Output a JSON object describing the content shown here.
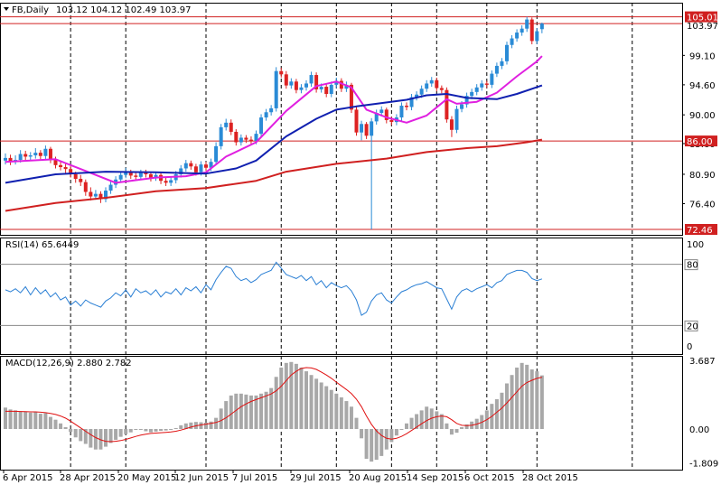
{
  "header": {
    "symbol": "FB,Daily",
    "ohlc": "103.12 104.12 102.49 103.97"
  },
  "colors": {
    "background": "#ffffff",
    "bull_candle": "#2a8bd6",
    "bear_candle": "#dd2222",
    "sma_fast": "#e020e0",
    "sma_mid": "#1020b0",
    "sma_slow": "#d02020",
    "hline": "#d02020",
    "rsi": "#2a7fd4",
    "macd_hist": "#a8a8a8",
    "macd_signal": "#e01010",
    "grid": "#000000"
  },
  "chart_data": [
    {
      "type": "candlestick",
      "panel": "price",
      "title": "FB,Daily",
      "ylim": [
        72.46,
        106.2
      ],
      "y_ticks": [
        "99.10",
        "94.60",
        "90.00",
        "85.60",
        "80.90",
        "76.40"
      ],
      "x_ticks": [
        "6 Apr 2015",
        "28 Apr 2015",
        "20 May 2015",
        "12 Jun 2015",
        "7 Jul 2015",
        "29 Jul 2015",
        "20 Aug 2015",
        "14 Sep 2015",
        "6 Oct 2015",
        "28 Oct 2015"
      ],
      "horizontal_levels": [
        {
          "value": 105.01,
          "label": "105.01",
          "style": "tag"
        },
        {
          "value": 103.97,
          "label": "103.97",
          "style": "plain"
        },
        {
          "value": 86.0,
          "label": "86.00",
          "style": "tag"
        },
        {
          "value": 72.46,
          "label": "72.46",
          "style": "tag"
        }
      ],
      "series": [
        {
          "kind": "ohlc",
          "close": [
            83.4,
            82.9,
            83.1,
            84.0,
            83.6,
            83.8,
            84.2,
            83.7,
            84.8,
            83.1,
            82.3,
            82.0,
            81.7,
            80.9,
            80.2,
            79.7,
            78.2,
            77.5,
            77.9,
            77.1,
            78.4,
            79.3,
            80.1,
            80.8,
            81.3,
            80.7,
            80.5,
            81.1,
            80.9,
            80.4,
            80.8,
            79.9,
            79.6,
            80.0,
            80.9,
            81.8,
            82.6,
            82.1,
            81.2,
            82.4,
            81.9,
            82.8,
            85.2,
            88.1,
            88.8,
            87.4,
            85.8,
            86.5,
            86.2,
            86.0,
            87.1,
            89.6,
            90.4,
            91.0,
            96.7,
            96.2,
            94.5,
            95.1,
            93.8,
            94.2,
            94.8,
            96.1,
            93.9,
            94.3,
            93.2,
            94.6,
            95.2,
            94.0,
            94.6,
            90.8,
            87.3,
            88.6,
            86.8,
            89.0,
            90.3,
            90.8,
            89.2,
            88.9,
            89.6,
            91.4,
            91.2,
            92.7,
            93.1,
            94.0,
            94.8,
            95.3,
            94.1,
            93.8,
            89.3,
            87.7,
            90.9,
            91.6,
            92.9,
            93.5,
            94.2,
            94.8,
            94.6,
            96.3,
            97.5,
            98.2,
            100.7,
            101.7,
            102.6,
            103.2,
            104.6,
            101.3,
            102.8,
            103.97
          ],
          "open": [
            83.0,
            83.4,
            82.9,
            83.1,
            84.0,
            83.6,
            83.8,
            84.2,
            83.7,
            84.8,
            83.1,
            82.3,
            82.0,
            81.7,
            80.9,
            80.2,
            79.7,
            78.2,
            77.5,
            77.9,
            77.1,
            78.4,
            79.3,
            80.1,
            80.8,
            81.3,
            80.7,
            80.5,
            81.1,
            80.9,
            80.4,
            80.8,
            79.9,
            79.6,
            80.0,
            80.9,
            81.8,
            82.6,
            82.1,
            81.2,
            82.4,
            81.9,
            82.8,
            85.2,
            88.1,
            88.8,
            87.4,
            85.8,
            86.5,
            86.2,
            86.0,
            87.1,
            89.6,
            90.4,
            91.0,
            96.7,
            96.2,
            94.5,
            95.1,
            93.8,
            94.2,
            94.8,
            96.1,
            93.9,
            94.3,
            93.2,
            94.6,
            95.2,
            94.0,
            94.6,
            90.8,
            87.3,
            88.6,
            86.8,
            89.0,
            90.3,
            90.8,
            89.2,
            88.9,
            89.6,
            91.4,
            91.2,
            92.7,
            93.1,
            94.0,
            94.8,
            95.3,
            94.1,
            93.8,
            89.3,
            87.7,
            90.9,
            91.6,
            92.9,
            93.5,
            94.2,
            94.8,
            94.6,
            96.3,
            97.5,
            98.2,
            100.7,
            101.7,
            102.6,
            103.2,
            104.6,
            101.3,
            103.12
          ],
          "high": [
            84.1,
            83.9,
            83.8,
            84.6,
            84.5,
            84.3,
            84.9,
            84.6,
            85.3,
            85.1,
            83.6,
            82.9,
            82.5,
            82.2,
            81.3,
            80.8,
            80.1,
            78.9,
            78.5,
            78.3,
            78.9,
            79.8,
            80.6,
            81.3,
            81.9,
            81.6,
            81.2,
            81.6,
            81.6,
            81.3,
            81.3,
            81.1,
            80.4,
            80.5,
            81.4,
            82.3,
            83.1,
            83.0,
            82.5,
            82.9,
            82.8,
            83.3,
            85.8,
            88.6,
            89.4,
            89.3,
            87.8,
            87.0,
            86.9,
            86.7,
            87.6,
            90.1,
            90.9,
            91.5,
            97.3,
            97.2,
            96.7,
            95.6,
            95.5,
            94.7,
            95.3,
            96.6,
            96.5,
            94.8,
            94.8,
            95.1,
            95.7,
            95.6,
            95.1,
            94.9,
            91.3,
            89.1,
            88.9,
            89.5,
            90.8,
            91.3,
            91.1,
            89.7,
            90.1,
            91.9,
            91.9,
            93.2,
            93.6,
            94.5,
            95.3,
            95.8,
            95.7,
            94.5,
            94.2,
            89.8,
            91.4,
            92.1,
            93.4,
            94.0,
            94.7,
            95.3,
            95.2,
            96.8,
            98.0,
            98.7,
            101.2,
            102.2,
            103.1,
            103.7,
            105.01,
            104.9,
            103.3,
            104.12
          ],
          "low": [
            82.4,
            82.3,
            82.4,
            82.7,
            83.0,
            83.1,
            83.3,
            83.2,
            83.2,
            82.6,
            81.8,
            81.5,
            81.1,
            80.4,
            79.6,
            79.1,
            77.6,
            76.9,
            77.0,
            76.5,
            76.6,
            77.9,
            78.8,
            79.6,
            80.3,
            80.2,
            80.0,
            80.0,
            80.4,
            79.8,
            79.9,
            79.4,
            79.1,
            79.1,
            79.5,
            80.4,
            81.3,
            81.6,
            80.7,
            80.7,
            81.4,
            81.4,
            82.3,
            84.7,
            87.6,
            86.9,
            85.3,
            85.3,
            85.7,
            85.5,
            85.5,
            86.6,
            89.1,
            89.9,
            90.5,
            95.7,
            94.0,
            94.0,
            93.3,
            93.3,
            93.7,
            94.3,
            93.4,
            93.4,
            92.7,
            92.7,
            94.1,
            93.5,
            93.5,
            90.3,
            86.8,
            86.1,
            86.3,
            72.46,
            88.5,
            89.8,
            88.7,
            88.4,
            88.4,
            89.1,
            90.7,
            90.7,
            92.2,
            92.6,
            93.5,
            94.3,
            93.6,
            93.3,
            88.8,
            86.6,
            87.2,
            90.4,
            91.1,
            92.4,
            93.0,
            93.7,
            94.1,
            94.1,
            95.8,
            97.0,
            97.7,
            100.2,
            101.2,
            102.1,
            102.7,
            100.8,
            100.8,
            102.49
          ]
        },
        {
          "kind": "sma",
          "color_key": "sma_fast",
          "points": [
            [
              0,
              82.8
            ],
            [
              10,
              83.2
            ],
            [
              16,
              81.4
            ],
            [
              22,
              79.6
            ],
            [
              30,
              80.4
            ],
            [
              36,
              80.6
            ],
            [
              40,
              81.2
            ],
            [
              44,
              83.6
            ],
            [
              50,
              85.8
            ],
            [
              56,
              90.6
            ],
            [
              62,
              94.4
            ],
            [
              66,
              95.1
            ],
            [
              69,
              94.2
            ],
            [
              72,
              90.8
            ],
            [
              76,
              89.6
            ],
            [
              80,
              88.8
            ],
            [
              84,
              89.9
            ],
            [
              88,
              92.4
            ],
            [
              90,
              91.7
            ],
            [
              94,
              92.0
            ],
            [
              98,
              93.4
            ],
            [
              102,
              95.9
            ],
            [
              106,
              98.2
            ],
            [
              107,
              99.0
            ]
          ]
        },
        {
          "kind": "sma",
          "color_key": "sma_mid",
          "points": [
            [
              0,
              79.6
            ],
            [
              10,
              80.9
            ],
            [
              20,
              81.3
            ],
            [
              30,
              81.2
            ],
            [
              40,
              81.0
            ],
            [
              46,
              81.8
            ],
            [
              50,
              83.0
            ],
            [
              56,
              86.7
            ],
            [
              62,
              89.4
            ],
            [
              66,
              90.8
            ],
            [
              70,
              91.3
            ],
            [
              74,
              91.7
            ],
            [
              80,
              92.3
            ],
            [
              84,
              93.0
            ],
            [
              88,
              93.2
            ],
            [
              92,
              92.6
            ],
            [
              98,
              92.4
            ],
            [
              102,
              93.2
            ],
            [
              107,
              94.5
            ]
          ]
        },
        {
          "kind": "sma",
          "color_key": "sma_slow",
          "points": [
            [
              0,
              75.3
            ],
            [
              10,
              76.5
            ],
            [
              20,
              77.3
            ],
            [
              30,
              78.3
            ],
            [
              40,
              78.8
            ],
            [
              50,
              79.9
            ],
            [
              56,
              81.3
            ],
            [
              66,
              82.5
            ],
            [
              76,
              83.3
            ],
            [
              84,
              84.3
            ],
            [
              92,
              84.9
            ],
            [
              98,
              85.2
            ],
            [
              104,
              85.8
            ],
            [
              107,
              86.2
            ]
          ]
        }
      ]
    },
    {
      "type": "line",
      "panel": "rsi",
      "title": "RSI(14) 65.6449",
      "ylim": [
        0,
        100
      ],
      "y_ticks": [
        "100",
        "80",
        "20",
        "0"
      ],
      "levels": [
        80,
        20
      ],
      "series": [
        {
          "name": "RSI(14)",
          "values": [
            55,
            53,
            56,
            52,
            58,
            50,
            57,
            51,
            55,
            48,
            52,
            45,
            48,
            40,
            44,
            39,
            45,
            42,
            40,
            38,
            44,
            47,
            52,
            49,
            55,
            48,
            56,
            52,
            54,
            50,
            55,
            48,
            53,
            51,
            56,
            50,
            57,
            54,
            58,
            52,
            60,
            55,
            65,
            72,
            78,
            76,
            68,
            64,
            66,
            62,
            65,
            70,
            72,
            74,
            82,
            76,
            70,
            68,
            66,
            69,
            64,
            68,
            60,
            64,
            57,
            62,
            59,
            57,
            59,
            54,
            45,
            30,
            33,
            44,
            50,
            52,
            45,
            42,
            48,
            53,
            55,
            58,
            60,
            61,
            63,
            60,
            57,
            56,
            46,
            36,
            48,
            54,
            56,
            53,
            56,
            58,
            60,
            57,
            62,
            64,
            70,
            72,
            74,
            74,
            72,
            66,
            64,
            65.6449
          ]
        }
      ]
    },
    {
      "type": "bar",
      "panel": "macd",
      "title": "MACD(12,26,9) 2.880 2.782",
      "ylim": [
        -1.809,
        3.687
      ],
      "y_ticks": [
        "3.687",
        "0.00",
        "-1.809"
      ],
      "series": [
        {
          "name": "MACD(12,26,9)",
          "values": [
            1.15,
            1.05,
            1.0,
            0.95,
            0.92,
            0.88,
            0.9,
            0.82,
            0.85,
            0.65,
            0.5,
            0.3,
            0.1,
            -0.15,
            -0.45,
            -0.65,
            -0.8,
            -1.0,
            -1.1,
            -1.1,
            -0.95,
            -0.75,
            -0.58,
            -0.42,
            -0.28,
            -0.18,
            -0.05,
            -0.05,
            -0.12,
            -0.18,
            -0.14,
            -0.1,
            -0.08,
            -0.05,
            0.05,
            0.2,
            0.3,
            0.35,
            0.38,
            0.36,
            0.34,
            0.4,
            0.6,
            1.1,
            1.5,
            1.8,
            1.9,
            1.9,
            1.85,
            1.8,
            1.8,
            1.9,
            2.0,
            2.2,
            2.8,
            3.3,
            3.55,
            3.6,
            3.5,
            3.3,
            3.1,
            2.9,
            2.7,
            2.5,
            2.3,
            2.1,
            1.9,
            1.7,
            1.5,
            1.2,
            0.6,
            -0.5,
            -1.6,
            -1.75,
            -1.65,
            -1.45,
            -1.1,
            -0.7,
            -0.35,
            0.0,
            0.3,
            0.6,
            0.8,
            1.0,
            1.2,
            1.1,
            0.95,
            0.8,
            0.3,
            -0.3,
            -0.2,
            0.1,
            0.25,
            0.4,
            0.55,
            0.75,
            1.0,
            1.35,
            1.6,
            1.95,
            2.45,
            2.9,
            3.3,
            3.55,
            3.45,
            3.2,
            3.1,
            2.88
          ]
        },
        {
          "name": "signal",
          "values": [
            0.95,
            0.95,
            0.95,
            0.94,
            0.93,
            0.92,
            0.92,
            0.9,
            0.88,
            0.84,
            0.78,
            0.7,
            0.58,
            0.42,
            0.24,
            0.06,
            -0.12,
            -0.3,
            -0.46,
            -0.58,
            -0.66,
            -0.68,
            -0.66,
            -0.62,
            -0.56,
            -0.48,
            -0.4,
            -0.33,
            -0.28,
            -0.24,
            -0.22,
            -0.2,
            -0.18,
            -0.16,
            -0.12,
            -0.06,
            0.02,
            0.1,
            0.17,
            0.22,
            0.26,
            0.3,
            0.35,
            0.45,
            0.6,
            0.8,
            1.0,
            1.2,
            1.35,
            1.48,
            1.58,
            1.68,
            1.78,
            1.88,
            2.05,
            2.3,
            2.6,
            2.9,
            3.1,
            3.25,
            3.3,
            3.28,
            3.2,
            3.06,
            2.9,
            2.72,
            2.52,
            2.32,
            2.12,
            1.9,
            1.6,
            1.2,
            0.7,
            0.25,
            -0.1,
            -0.35,
            -0.5,
            -0.55,
            -0.5,
            -0.4,
            -0.25,
            -0.08,
            0.1,
            0.28,
            0.45,
            0.58,
            0.66,
            0.7,
            0.66,
            0.5,
            0.3,
            0.2,
            0.18,
            0.2,
            0.26,
            0.36,
            0.5,
            0.68,
            0.9,
            1.12,
            1.4,
            1.7,
            2.0,
            2.3,
            2.5,
            2.62,
            2.72,
            2.782
          ]
        }
      ]
    }
  ]
}
